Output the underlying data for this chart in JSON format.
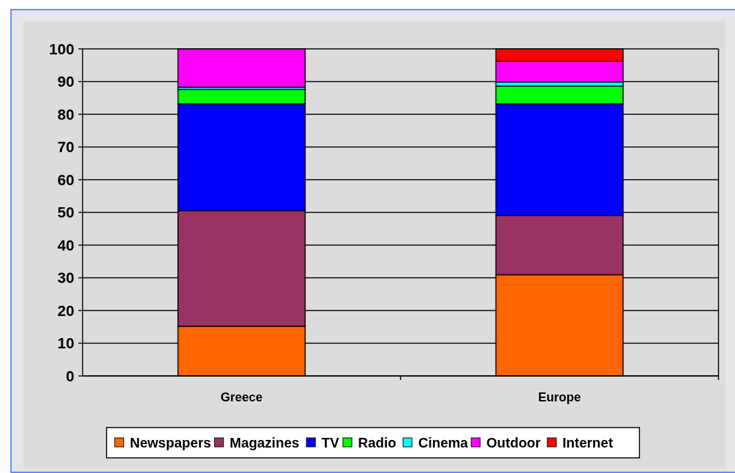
{
  "chart_data": {
    "type": "bar",
    "stacked": true,
    "categories": [
      "Greece",
      "Europe"
    ],
    "series": [
      {
        "name": "Newspapers",
        "color": "#ff6600",
        "values": [
          15.2,
          30.9
        ]
      },
      {
        "name": "Magazines",
        "color": "#993366",
        "values": [
          35.3,
          18.2
        ]
      },
      {
        "name": "TV",
        "color": "#0000ff",
        "values": [
          32.7,
          34.1
        ]
      },
      {
        "name": "Radio",
        "color": "#00ff00",
        "values": [
          4.4,
          5.4
        ]
      },
      {
        "name": "Cinema",
        "color": "#00ffff",
        "values": [
          0.7,
          1.3
        ]
      },
      {
        "name": "Outdoor",
        "color": "#ff00ff",
        "values": [
          11.7,
          6.3
        ]
      },
      {
        "name": "Internet",
        "color": "#ff0000",
        "values": [
          0,
          3.8
        ]
      }
    ],
    "ylim": [
      0,
      100
    ],
    "yticks": [
      0,
      10,
      20,
      30,
      40,
      50,
      60,
      70,
      80,
      90,
      100
    ],
    "grid": "y",
    "legend": "bottom"
  }
}
